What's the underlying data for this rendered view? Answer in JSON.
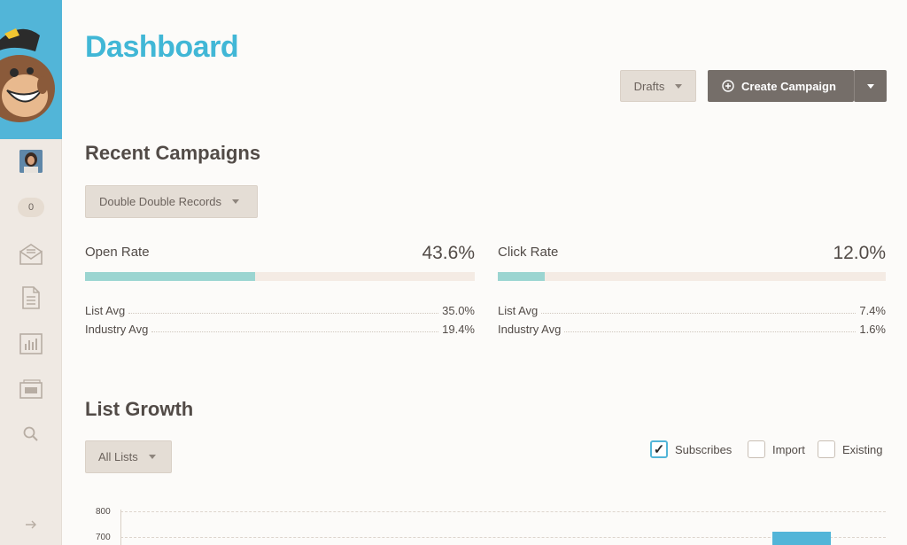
{
  "sidebar": {
    "badge_count": "0",
    "icons": [
      "inbox-icon",
      "document-icon",
      "bar-chart-icon",
      "list-icon",
      "search-icon",
      "arrow-right-icon"
    ]
  },
  "header": {
    "title": "Dashboard",
    "drafts_label": "Drafts",
    "create_campaign_label": "Create Campaign"
  },
  "recent_campaigns": {
    "title": "Recent Campaigns",
    "selected_campaign": "Double Double Records",
    "open_rate": {
      "label": "Open Rate",
      "value": "43.6%",
      "fill_fraction": 0.436,
      "list_avg_label": "List Avg",
      "list_avg_value": "35.0%",
      "industry_avg_label": "Industry Avg",
      "industry_avg_value": "19.4%"
    },
    "click_rate": {
      "label": "Click Rate",
      "value": "12.0%",
      "fill_fraction": 0.12,
      "list_avg_label": "List Avg",
      "list_avg_value": "7.4%",
      "industry_avg_label": "Industry Avg",
      "industry_avg_value": "1.6%"
    }
  },
  "list_growth": {
    "title": "List Growth",
    "list_select": "All Lists",
    "filters": [
      {
        "label": "Subscribes",
        "checked": true
      },
      {
        "label": "Import",
        "checked": false
      },
      {
        "label": "Existing",
        "checked": false
      }
    ],
    "y_ticks": [
      "800",
      "700"
    ]
  },
  "colors": {
    "accent": "#41b7d6",
    "brand_bg": "#52b5d8",
    "bar_fill": "#9bd5d1",
    "dark_button": "#756e69"
  }
}
